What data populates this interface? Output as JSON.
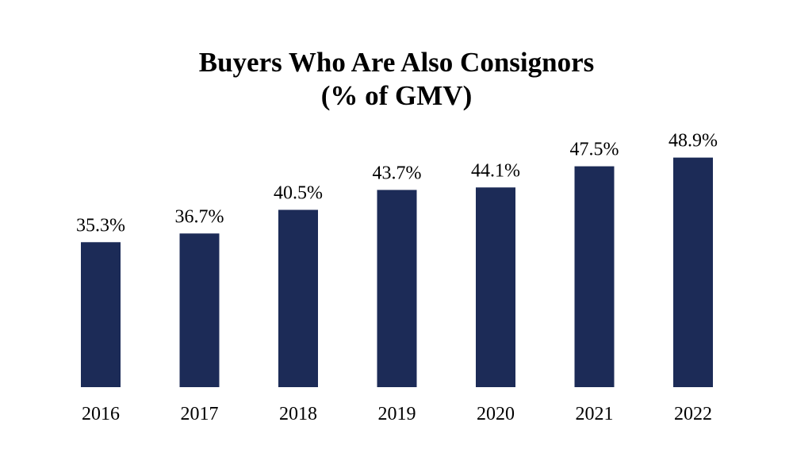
{
  "chart_data": {
    "type": "bar",
    "title": "Buyers Who Are Also Consignors",
    "subtitle": "(% of GMV)",
    "categories": [
      "2016",
      "2017",
      "2018",
      "2019",
      "2020",
      "2021",
      "2022"
    ],
    "values": [
      35.3,
      36.7,
      40.5,
      43.7,
      44.1,
      47.5,
      48.9
    ],
    "data_labels": [
      "35.3%",
      "36.7%",
      "40.5%",
      "43.7%",
      "44.1%",
      "47.5%",
      "48.9%"
    ],
    "xlabel": "",
    "ylabel": "",
    "ylim": [
      12,
      50
    ],
    "grid": false,
    "legend": "none",
    "bar_color": "#1c2b57"
  }
}
